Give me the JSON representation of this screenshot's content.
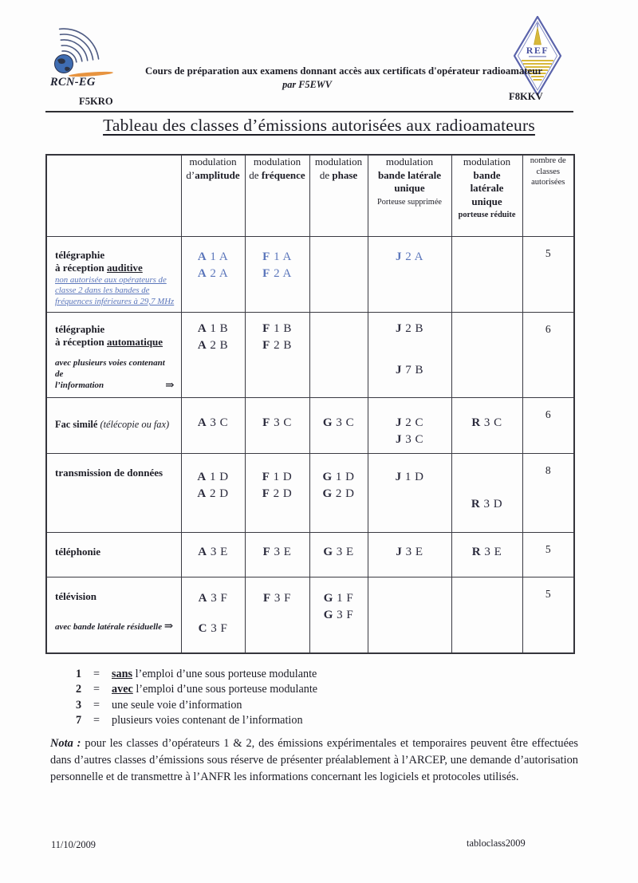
{
  "header": {
    "org_name": "RCN-EG",
    "course_line": "Cours de préparation aux examens donnant accès aux certificats d'opérateur radioamateur",
    "author_line": "par F5EWV",
    "callsign_left": "F5KRO",
    "callsign_right": "F8KKV",
    "ref_logo_text": "REF"
  },
  "title": "Tableau des classes d’émissions autorisées aux radioamateurs",
  "table": {
    "header": {
      "amp": {
        "l1": "modulation",
        "pre": "d’",
        "key": "amplitude"
      },
      "freq": {
        "l1": "modulation",
        "pre": "de ",
        "key": "fréquence"
      },
      "phase": {
        "l1": "modulation",
        "pre": "de ",
        "key": "phase"
      },
      "blu1": {
        "l1": "modulation",
        "b1": "bande latérale",
        "b2": "unique",
        "sub": "Porteuse supprimée"
      },
      "blu2": {
        "l1": "modulation",
        "b1": "bande",
        "b2": "latérale",
        "b3": "unique",
        "sub": "porteuse réduite"
      },
      "count": {
        "l1": "nombre de",
        "l2": "classes",
        "l3": "autorisées"
      }
    },
    "rows": [
      {
        "label_line1": "télégraphie",
        "label_line2_pre": "à réception ",
        "label_line2_emph": "auditive",
        "note_lines": [
          "non autorisée aux opérateurs de",
          "classe 2 dans les bandes de",
          "fréquences inférieures à 29,7 MHz"
        ],
        "cells": {
          "amp": [
            "A 1 A",
            "A 2 A"
          ],
          "freq": [
            "F 1 A",
            "F 2 A"
          ],
          "phase": [],
          "blu1": [
            "J 2 A"
          ],
          "blu2": [],
          "count": "5"
        }
      },
      {
        "label_line1": "télégraphie",
        "label_line2_pre": "à réception ",
        "label_line2_emph": "automatique",
        "note_line1": "avec plusieurs voies contenant de",
        "note_line2": "l’information",
        "note_arrow": "⇒",
        "cells": {
          "amp": [
            "A 1 B",
            "A 2 B"
          ],
          "freq": [
            "F 1 B",
            "F 2 B"
          ],
          "phase": [],
          "blu1": [
            "J 2 B",
            {
              "t": "J 7 B",
              "gap": 31
            }
          ],
          "blu2": [],
          "count": "6"
        }
      },
      {
        "label_bold": "Fac similé",
        "label_italic": " (télécopie ou fax)",
        "cells": {
          "amp": [
            "A 3 C"
          ],
          "freq": [
            "F 3 C"
          ],
          "phase": [
            "G 3 C"
          ],
          "blu1": [
            "J 2 C",
            "J 3 C"
          ],
          "blu2": [
            "R 3 C"
          ],
          "count": "6"
        }
      },
      {
        "label_line1": "transmission de données",
        "cells": {
          "amp": [
            "A 1 D",
            "A 2 D"
          ],
          "freq": [
            "F 1 D",
            "F 2 D"
          ],
          "phase": [
            "G 1 D",
            "G 2 D"
          ],
          "blu1": [
            "J 1 D"
          ],
          "blu2": [
            {
              "t": "R 3 D",
              "gap": 34
            }
          ],
          "count": "8"
        }
      },
      {
        "label_line1": "téléphonie",
        "cells": {
          "amp": [
            "A 3 E"
          ],
          "freq": [
            "F 3 E"
          ],
          "phase": [
            "G 3 E"
          ],
          "blu1": [
            "J 3 E"
          ],
          "blu2": [
            "R 3 E"
          ],
          "count": "5"
        }
      },
      {
        "label_line1": "télévision",
        "note_line": "avec bande latérale résiduelle ",
        "note_arrow": "⇒",
        "cells": {
          "amp": [
            "A 3 F",
            {
              "t": "C 3 F",
              "gap": 17
            }
          ],
          "freq": [
            "F 3 F"
          ],
          "phase": [
            "G 1 F",
            "G 3 F"
          ],
          "blu1": [],
          "blu2": [],
          "count": "5"
        }
      }
    ]
  },
  "legend": {
    "items": [
      {
        "num": "1",
        "eq": "=",
        "word": "sans",
        "rest": " l’emploi d’une sous porteuse modulante"
      },
      {
        "num": "2",
        "eq": "=",
        "word": "avec",
        "rest": " l’emploi d’une sous porteuse modulante"
      },
      {
        "num": "3",
        "eq": "=",
        "word": "",
        "rest": "une seule voie d’information"
      },
      {
        "num": "7",
        "eq": "=",
        "word": "",
        "rest": "plusieurs voies contenant de l’information"
      }
    ]
  },
  "nota": {
    "label": "Nota :",
    "text": " pour les classes d’opérateurs 1 & 2, des émissions expérimentales et temporaires peuvent être effectuées dans d’autres classes d’émissions sous réserve de présenter préalablement à l’ARCEP, une demande d’autorisation personnelle et de transmettre à l’ANFR les informations concernant les logiciels et protocoles utilisés."
  },
  "footer": {
    "date": "11/10/2009",
    "docname": "tabloclass2009"
  },
  "colors": {
    "code_blue": "#5b76bb",
    "code_dark": "#2b2b3d",
    "border": "#3a3a42",
    "logo_orange": "#e79440",
    "ref_blue": "#5a63ab",
    "ref_yellow": "#d8b93a",
    "globe_blue": "#3f6db2"
  }
}
